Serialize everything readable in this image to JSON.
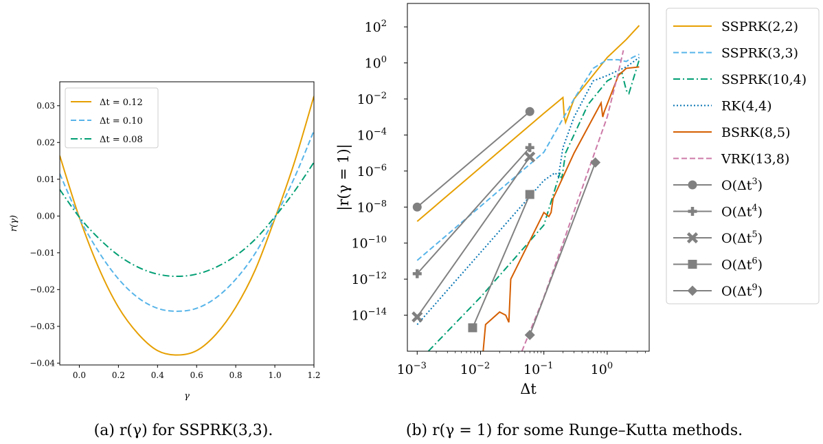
{
  "chart_data": [
    {
      "type": "line",
      "xlabel": "γ",
      "ylabel": "r(γ)",
      "caption": "(a) r(γ) for SSPRK(3,3).",
      "xlim": [
        -0.1,
        1.2
      ],
      "ylim": [
        -0.0405,
        0.0365
      ],
      "xticks": [
        0.0,
        0.2,
        0.4,
        0.6,
        0.8,
        1.0,
        1.2
      ],
      "xtick_labels": [
        "0.0",
        "0.2",
        "0.4",
        "0.6",
        "0.8",
        "1.0",
        "1.2"
      ],
      "yticks": [
        -0.04,
        -0.03,
        -0.02,
        -0.01,
        0.0,
        0.01,
        0.02,
        0.03
      ],
      "ytick_labels": [
        "−0.04",
        "−0.03",
        "−0.02",
        "−0.01",
        "0.00",
        "0.01",
        "0.02",
        "0.03"
      ],
      "legend_position": "top-left",
      "x": [
        -0.1,
        0.0,
        0.1,
        0.2,
        0.3,
        0.4,
        0.5,
        0.6,
        0.7,
        0.8,
        0.9,
        1.0,
        1.1,
        1.2
      ],
      "series": [
        {
          "name": "Δt = 0.12",
          "color": "#E69F00",
          "dash": "solid",
          "values": [
            0.0164,
            -0.0004,
            -0.0142,
            -0.0248,
            -0.032,
            -0.0366,
            -0.0378,
            -0.0366,
            -0.0321,
            -0.0248,
            -0.0146,
            -0.0007,
            0.0146,
            0.0326
          ]
        },
        {
          "name": "Δt = 0.10",
          "color": "#56B4E9",
          "dash": "dashed",
          "values": [
            0.0115,
            -0.0005,
            -0.0098,
            -0.0171,
            -0.0222,
            -0.0251,
            -0.0259,
            -0.0251,
            -0.0222,
            -0.0172,
            -0.0101,
            -0.0005,
            0.0104,
            0.0232
          ]
        },
        {
          "name": "Δt = 0.08",
          "color": "#009E73",
          "dash": "dashdot",
          "values": [
            0.0072,
            -0.0003,
            -0.0061,
            -0.0107,
            -0.0139,
            -0.0158,
            -0.0164,
            -0.0158,
            -0.0139,
            -0.0108,
            -0.0063,
            -0.0002,
            0.0067,
            0.0146
          ]
        }
      ]
    },
    {
      "type": "line",
      "xscale": "log",
      "yscale": "log",
      "xlabel": "Δt",
      "ylabel": "|r(γ = 1)|",
      "caption": "(b) r(γ = 1) for some Runge–Kutta methods.",
      "xlim": [
        0.0007,
        4.6
      ],
      "ylim": [
        1e-16,
        2000.0
      ],
      "xticks": [
        0.001,
        0.01,
        0.1,
        1
      ],
      "xtick_labels": [
        "10^-3",
        "10^-2",
        "10^-1",
        "10^0"
      ],
      "yticks": [
        1e-14,
        1e-12,
        1e-10,
        1e-08,
        1e-06,
        0.0001,
        0.01,
        1,
        100
      ],
      "ytick_labels": [
        "10^-14",
        "10^-12",
        "10^-10",
        "10^-8",
        "10^-6",
        "10^-4",
        "10^-2",
        "10^0",
        "10^2"
      ],
      "legend_position": "outside right",
      "series": [
        {
          "name": "SSPRK(2,2)",
          "color": "#E69F00",
          "dash": "solid",
          "x": [
            0.001,
            0.01,
            0.1,
            0.2,
            0.21,
            0.22,
            0.3,
            1,
            2,
            3.2
          ],
          "values": [
            1.6e-09,
            1.6e-06,
            0.0016,
            0.012,
            0.001,
            0.0005,
            0.01,
            2,
            20,
            120
          ]
        },
        {
          "name": "SSPRK(3,3)",
          "color": "#56B4E9",
          "dash": "dashed",
          "x": [
            0.001,
            0.01,
            0.1,
            0.3,
            0.6,
            1,
            1.5,
            2,
            2.5,
            3.2
          ],
          "values": [
            1.1e-11,
            1.1e-08,
            1.1e-05,
            0.01,
            0.5,
            1.5,
            1.5,
            1.2,
            2,
            3
          ]
        },
        {
          "name": "SSPRK(10,4)",
          "color": "#009E73",
          "dash": "dashdot",
          "x": [
            0.0015,
            0.01,
            0.1,
            0.18,
            0.19,
            0.22,
            0.5,
            1,
            1.7,
            2,
            2.2,
            3.2
          ],
          "values": [
            1e-16,
            1e-13,
            1e-09,
            8e-07,
            3e-07,
            1e-05,
            0.005,
            0.1,
            0.3,
            0.03,
            0.02,
            1.5
          ]
        },
        {
          "name": "RK(4,4)",
          "color": "#0072B2",
          "dash": "dotted",
          "x": [
            0.001,
            0.01,
            0.1,
            0.15,
            0.17,
            0.2,
            0.3,
            0.6,
            1,
            2,
            3.2
          ],
          "values": [
            3e-15,
            3e-11,
            3e-07,
            8e-07,
            5e-07,
            2e-05,
            0.001,
            0.1,
            0.2,
            0.6,
            2
          ]
        },
        {
          "name": "BSRK(8,5)",
          "color": "#D55E00",
          "dash": "solid",
          "x": [
            0.011,
            0.012,
            0.02,
            0.025,
            0.028,
            0.03,
            0.1,
            0.12,
            0.13,
            0.14,
            0.3,
            0.8,
            0.85,
            0.9,
            1.5,
            2,
            3.2
          ],
          "values": [
            1e-16,
            3e-15,
            1.5e-14,
            1e-14,
            4e-15,
            1e-12,
            5e-09,
            3e-09,
            5e-09,
            3e-08,
            1e-05,
            0.006,
            0.001,
            0.002,
            0.2,
            0.5,
            0.6
          ]
        },
        {
          "name": "VRK(13,8)",
          "color": "#CC79A7",
          "dash": "dashed",
          "x": [
            0.045,
            0.1,
            0.2,
            0.5,
            1,
            1.5,
            1.8
          ],
          "values": [
            1e-16,
            1e-13,
            1e-10,
            1e-06,
            0.001,
            0.3,
            5
          ]
        },
        {
          "name": "O(Δt^3)",
          "color": "#808080",
          "marker": "circle",
          "x": [
            0.001,
            0.06
          ],
          "values": [
            1e-08,
            0.002
          ]
        },
        {
          "name": "O(Δt^4)",
          "color": "#808080",
          "marker": "plus",
          "x": [
            0.001,
            0.06
          ],
          "values": [
            2e-12,
            2e-05
          ]
        },
        {
          "name": "O(Δt^5)",
          "color": "#808080",
          "marker": "x",
          "x": [
            0.001,
            0.06
          ],
          "values": [
            8e-15,
            6e-06
          ]
        },
        {
          "name": "O(Δt^6)",
          "color": "#808080",
          "marker": "square",
          "x": [
            0.0075,
            0.06
          ],
          "values": [
            2e-15,
            5e-08
          ]
        },
        {
          "name": "O(Δt^9)",
          "color": "#808080",
          "marker": "diamond",
          "x": [
            0.06,
            0.65
          ],
          "values": [
            8e-16,
            3e-06
          ]
        }
      ]
    }
  ]
}
